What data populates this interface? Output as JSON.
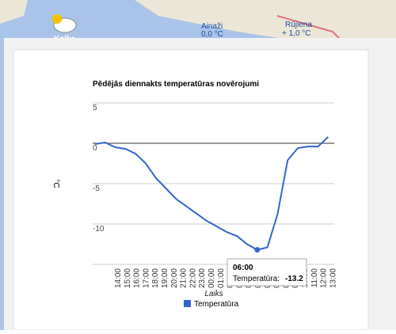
{
  "map": {
    "labels": [
      {
        "name": "Ainaži",
        "temp": "0,0 °C"
      },
      {
        "name": "Rūjiena",
        "temp": "+ 1,0 °C"
      },
      {
        "name": "Kolka"
      }
    ]
  },
  "chart_data": {
    "type": "line",
    "title": "Pēdējās diennakts temperatūras novērojumi",
    "x_label": "Laiks",
    "y_label": "°C",
    "categories": [
      "14:00",
      "15:00",
      "16:00",
      "17:00",
      "18:00",
      "19:00",
      "20:00",
      "21:00",
      "22:00",
      "23:00",
      "00:00",
      "01:00",
      "02:00",
      "03:00",
      "04:00",
      "05:00",
      "06:00",
      "07:00",
      "08:00",
      "09:00",
      "10:00",
      "11:00",
      "12:00",
      "13:00"
    ],
    "series": [
      {
        "name": "Temperatūra",
        "color": "#3366cc",
        "values": [
          -0.1,
          0.1,
          -0.5,
          -0.7,
          -1.3,
          -2.5,
          -4.3,
          -5.6,
          -6.9,
          -7.8,
          -8.7,
          -9.6,
          -10.3,
          -11.0,
          -11.5,
          -12.5,
          -13.2,
          -12.9,
          -8.8,
          -2.1,
          -0.6,
          -0.4,
          -0.4,
          0.8
        ]
      }
    ],
    "ylim": [
      -15,
      5
    ],
    "yticks": [
      -10,
      -5,
      0,
      5
    ],
    "grid": true,
    "tooltip": {
      "index": 16,
      "label": "Temperatūra:"
    }
  }
}
